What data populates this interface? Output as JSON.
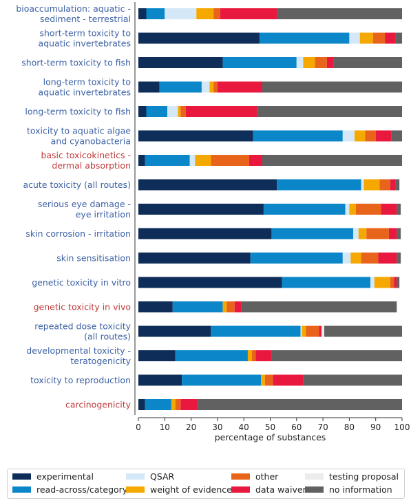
{
  "chart_data": {
    "type": "bar",
    "orientation": "horizontal",
    "stacked": true,
    "xlabel": "percentage of substances",
    "xlim": [
      0,
      100
    ],
    "xticks": [
      "0",
      "10",
      "20",
      "30",
      "40",
      "50",
      "60",
      "70",
      "80",
      "90",
      "100"
    ],
    "grid": false,
    "legend_placement": "bottom",
    "categories": [
      {
        "label": "bioaccumulation: aquatic - sediment - terrestrial",
        "lines": [
          "bioaccumulation: aquatic -",
          "sediment - terrestrial"
        ],
        "color": "#3d62a5"
      },
      {
        "label": "short-term toxicity to aquatic invertebrates",
        "lines": [
          "short-term toxicity to",
          "aquatic invertebrates"
        ],
        "color": "#3d62a5"
      },
      {
        "label": "short-term toxicity to fish",
        "lines": [
          "short-term toxicity to fish"
        ],
        "color": "#3d62a5"
      },
      {
        "label": "long-term toxicity to aquatic invertebrates",
        "lines": [
          "long-term toxicity to",
          "aquatic invertebrates"
        ],
        "color": "#3d62a5"
      },
      {
        "label": "long-term toxicity to fish",
        "lines": [
          "long-term toxicity to fish"
        ],
        "color": "#3d62a5"
      },
      {
        "label": "toxicity to aquatic algae and cyanobacteria",
        "lines": [
          "toxicity to aquatic algae",
          "and cyanobacteria"
        ],
        "color": "#3d62a5"
      },
      {
        "label": "basic toxicokinetics - dermal absorption",
        "lines": [
          "basic toxicokinetics -",
          "dermal absorption"
        ],
        "color": "#c0393b"
      },
      {
        "label": "acute toxicity (all routes)",
        "lines": [
          "acute toxicity (all routes)"
        ],
        "color": "#3d62a5"
      },
      {
        "label": "serious eye damage - eye irritation",
        "lines": [
          "serious eye damage -",
          "eye irritation"
        ],
        "color": "#3d62a5"
      },
      {
        "label": "skin corrosion - irritation",
        "lines": [
          "skin corrosion - irritation"
        ],
        "color": "#3d62a5"
      },
      {
        "label": "skin sensitisation",
        "lines": [
          "skin sensitisation"
        ],
        "color": "#3d62a5"
      },
      {
        "label": "genetic toxicity in vitro",
        "lines": [
          "genetic toxicity in vitro"
        ],
        "color": "#3d62a5"
      },
      {
        "label": "genetic toxicity in vivo",
        "lines": [
          "genetic toxicity in vivo"
        ],
        "color": "#c0393b"
      },
      {
        "label": "repeated dose toxicity (all routes)",
        "lines": [
          "repeated dose toxicity",
          "(all routes)"
        ],
        "color": "#3d62a5"
      },
      {
        "label": "developmental toxicity - teratogenicity",
        "lines": [
          "developmental toxicity -",
          "teratogenicity"
        ],
        "color": "#3d62a5"
      },
      {
        "label": "toxicity to reproduction",
        "lines": [
          "toxicity to reproduction"
        ],
        "color": "#3d62a5"
      },
      {
        "label": "carcinogenicity",
        "lines": [
          "carcinogenicity"
        ],
        "color": "#c0393b"
      }
    ],
    "series": [
      {
        "name": "experimental",
        "color": "#0e2d58",
        "values": [
          3.0,
          46.0,
          32.0,
          8.0,
          3.0,
          43.5,
          2.5,
          52.5,
          47.5,
          50.5,
          42.5,
          54.5,
          13.0,
          27.5,
          14.0,
          16.5,
          2.5
        ]
      },
      {
        "name": "read-across/category",
        "color": "#0b87c9",
        "values": [
          7.0,
          34.0,
          28.0,
          16.0,
          8.0,
          34.0,
          17.0,
          32.0,
          31.0,
          31.0,
          35.0,
          33.5,
          19.0,
          34.0,
          27.5,
          30.0,
          10.0
        ]
      },
      {
        "name": "QSAR",
        "color": "#d4e8f7",
        "values": [
          12.0,
          4.0,
          2.5,
          3.0,
          4.0,
          4.5,
          2.0,
          1.0,
          1.5,
          2.0,
          3.0,
          1.5,
          0.0,
          0.5,
          0.0,
          0.0,
          0.0
        ]
      },
      {
        "name": "weight of evidence",
        "color": "#f5a800",
        "values": [
          6.5,
          5.0,
          4.5,
          1.5,
          1.0,
          4.0,
          6.0,
          6.0,
          2.5,
          3.0,
          4.0,
          6.0,
          1.5,
          1.5,
          1.5,
          1.5,
          1.5
        ]
      },
      {
        "name": "other",
        "color": "#e8641b",
        "values": [
          2.5,
          4.5,
          4.5,
          1.5,
          2.0,
          4.0,
          14.5,
          4.0,
          9.5,
          8.5,
          6.5,
          1.5,
          3.0,
          5.0,
          1.5,
          3.0,
          2.0
        ]
      },
      {
        "name": "data waiver",
        "color": "#e8183e",
        "values": [
          21.5,
          4.0,
          2.5,
          17.0,
          27.0,
          6.0,
          5.0,
          2.0,
          6.0,
          3.0,
          7.0,
          1.0,
          2.5,
          1.0,
          6.0,
          11.5,
          6.5
        ]
      },
      {
        "name": "testing proposal",
        "color": "#ececec",
        "values": [
          0.0,
          0.0,
          0.0,
          0.0,
          0.0,
          0.0,
          0.0,
          0.0,
          0.0,
          0.0,
          0.0,
          0.0,
          0.0,
          1.0,
          0.0,
          0.0,
          0.0
        ]
      },
      {
        "name": "no information",
        "color": "#616161",
        "values": [
          47.5,
          2.5,
          26.0,
          53.0,
          55.0,
          4.0,
          53.0,
          1.5,
          1.5,
          1.5,
          1.5,
          1.0,
          59.0,
          29.5,
          49.5,
          37.5,
          77.5
        ]
      }
    ]
  },
  "legend": {
    "items": [
      {
        "name": "experimental",
        "color": "#0e2d58"
      },
      {
        "name": "read-across/category",
        "color": "#0b87c9"
      },
      {
        "name": "QSAR",
        "color": "#d4e8f7"
      },
      {
        "name": "weight of evidence",
        "color": "#f5a800"
      },
      {
        "name": "other",
        "color": "#e8641b"
      },
      {
        "name": "data waiver",
        "color": "#e8183e"
      },
      {
        "name": "testing proposal",
        "color": "#ececec"
      },
      {
        "name": "no information",
        "color": "#616161"
      }
    ]
  }
}
